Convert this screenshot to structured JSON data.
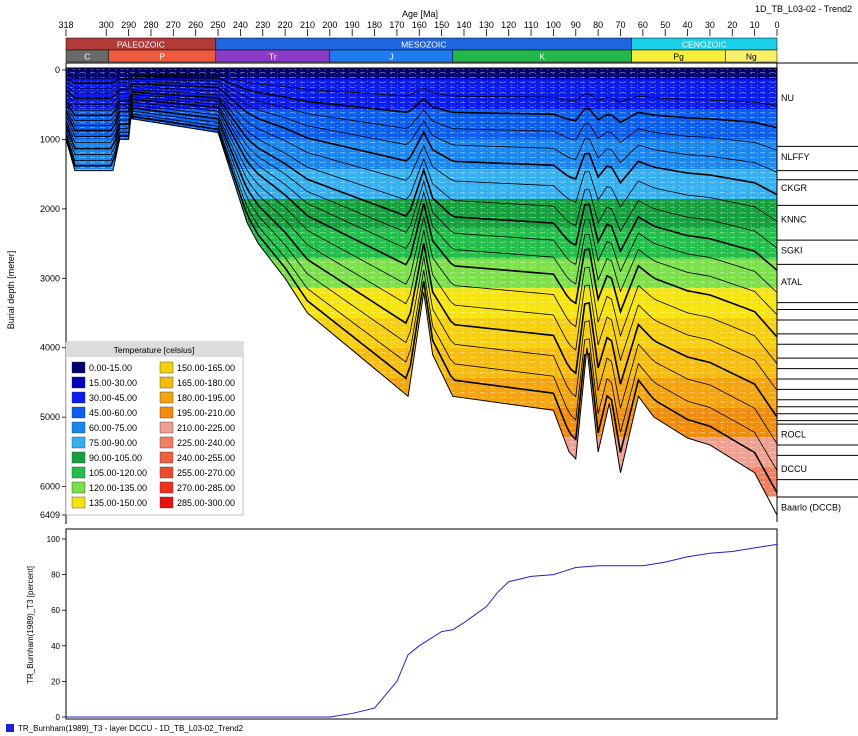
{
  "window_title": "1D_TB_L03-02 - Trend2",
  "chart_data": [
    {
      "type": "area",
      "title": "",
      "xlabel": "Age [Ma]",
      "ylabel": "Burial depth [meter]",
      "xlim": [
        318,
        0
      ],
      "ylim": [
        0,
        6409
      ],
      "x_ticks": [
        318,
        300,
        290,
        280,
        270,
        260,
        250,
        240,
        230,
        220,
        210,
        200,
        190,
        180,
        170,
        160,
        150,
        140,
        130,
        120,
        110,
        100,
        90,
        80,
        70,
        60,
        50,
        40,
        30,
        20,
        10,
        0
      ],
      "y_ticks": [
        0,
        1000,
        2000,
        3000,
        4000,
        5000,
        6000,
        6409
      ],
      "eras": [
        {
          "name": "PALEOZOIC",
          "from": 318,
          "to": 251,
          "color": "#b23a3a"
        },
        {
          "name": "MESOZOIC",
          "from": 251,
          "to": 65,
          "color": "#1f66e0"
        },
        {
          "name": "CENOZOIC",
          "from": 65,
          "to": 0,
          "color": "#1ccfe8"
        }
      ],
      "periods": [
        {
          "name": "C",
          "from": 318,
          "to": 299,
          "color": "#6a6a6a"
        },
        {
          "name": "P",
          "from": 299,
          "to": 251,
          "color": "#ee5a3c"
        },
        {
          "name": "Tr",
          "from": 251,
          "to": 200,
          "color": "#8a3cc8"
        },
        {
          "name": "J",
          "from": 200,
          "to": 145,
          "color": "#1f7cf0"
        },
        {
          "name": "K",
          "from": 145,
          "to": 65,
          "color": "#22b84a"
        },
        {
          "name": "Pg",
          "from": 65,
          "to": 23,
          "color": "#f6ee3a"
        },
        {
          "name": "Ng",
          "from": 23,
          "to": 0,
          "color": "#f9ef6a"
        }
      ],
      "layers": [
        "NU",
        "NLFFY",
        "CKGR",
        "KNNC",
        "SGKI",
        "ATAL",
        "ROCL",
        "DCCU",
        "Baarlo (DCCB)"
      ],
      "basement_profile": {
        "x": [
          318,
          314,
          306,
          297,
          294,
          290,
          289,
          250,
          243,
          237,
          232,
          220,
          210,
          180,
          165,
          158,
          154,
          145,
          100,
          93,
          90,
          85,
          80,
          75,
          70,
          62,
          55,
          40,
          30,
          10,
          0
        ],
        "y": [
          1000,
          1450,
          1450,
          1450,
          1000,
          1000,
          700,
          900,
          1600,
          2200,
          2500,
          3000,
          3500,
          4300,
          4700,
          3200,
          4100,
          4700,
          4900,
          5500,
          5600,
          4000,
          5500,
          4800,
          5800,
          4700,
          5000,
          5300,
          5400,
          5800,
          6409
        ]
      },
      "temperature_legend": {
        "title": "Temperature [celsius]",
        "classes": [
          {
            "label": "0.00-15.00",
            "color": "#000070"
          },
          {
            "label": "15.00-30.00",
            "color": "#0000b8"
          },
          {
            "label": "30.00-45.00",
            "color": "#0a1cf0"
          },
          {
            "label": "45.00-60.00",
            "color": "#0a5ef0"
          },
          {
            "label": "60.00-75.00",
            "color": "#1a86f0"
          },
          {
            "label": "75.00-90.00",
            "color": "#36b0f0"
          },
          {
            "label": "90.00-105.00",
            "color": "#14a03c"
          },
          {
            "label": "105.00-120.00",
            "color": "#22c04a"
          },
          {
            "label": "120.00-135.00",
            "color": "#7ce04a"
          },
          {
            "label": "135.00-150.00",
            "color": "#f6e410"
          },
          {
            "label": "150.00-165.00",
            "color": "#f6d010"
          },
          {
            "label": "165.00-180.00",
            "color": "#f6bc10"
          },
          {
            "label": "180.00-195.00",
            "color": "#f4a410"
          },
          {
            "label": "195.00-210.00",
            "color": "#f28c0c"
          },
          {
            "label": "210.00-225.00",
            "color": "#f0a090"
          },
          {
            "label": "225.00-240.00",
            "color": "#f08060"
          },
          {
            "label": "240.00-255.00",
            "color": "#f06040"
          },
          {
            "label": "255.00-270.00",
            "color": "#ee4a30"
          },
          {
            "label": "270.00-285.00",
            "color": "#ee3020"
          },
          {
            "label": "285.00-300.00",
            "color": "#e81010"
          }
        ]
      }
    },
    {
      "type": "line",
      "title": "",
      "xlabel": "",
      "ylabel": "TR_Burnham(1989)_T3 [percent]",
      "xlim": [
        318,
        0
      ],
      "ylim": [
        0,
        100
      ],
      "y_ticks": [
        0,
        20,
        40,
        60,
        80,
        100
      ],
      "series": [
        {
          "name": "TR_Burnham(1989)_T3 - layer DCCU - 1D_TB_L03-02_Trend2",
          "color": "#2020d0",
          "x": [
            318,
            230,
            210,
            200,
            190,
            180,
            170,
            165,
            160,
            155,
            150,
            145,
            140,
            130,
            125,
            120,
            110,
            100,
            95,
            90,
            80,
            70,
            60,
            50,
            40,
            30,
            20,
            10,
            0
          ],
          "y": [
            0,
            0,
            0,
            0,
            2,
            5,
            20,
            35,
            40,
            44,
            48,
            49,
            53,
            62,
            70,
            76,
            79,
            80,
            82,
            84,
            85,
            85,
            85,
            87,
            90,
            92,
            93,
            95,
            97
          ]
        }
      ]
    }
  ]
}
